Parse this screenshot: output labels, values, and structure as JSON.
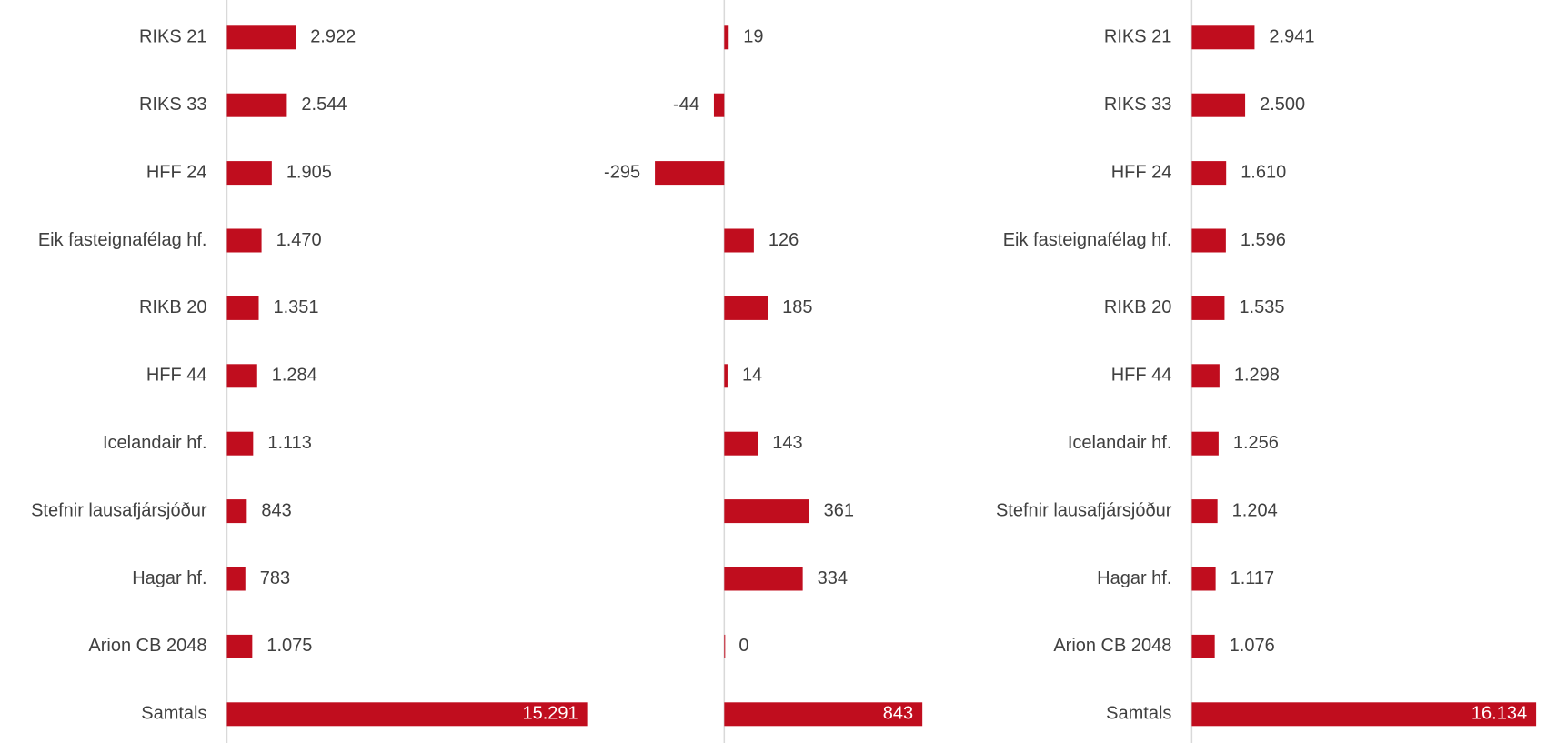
{
  "chart_data": [
    {
      "type": "bar",
      "orientation": "horizontal",
      "color": "#c00d1e",
      "categories": [
        "RIKS 21",
        "RIKS 33",
        "HFF 24",
        "Eik fasteignafélag hf.",
        "RIKB 20",
        "HFF 44",
        "Icelandair hf.",
        "Stefnir lausafjársjóður",
        "Hagar hf.",
        "Arion CB 2048",
        "Samtals"
      ],
      "values": [
        2922,
        2544,
        1905,
        1470,
        1351,
        1284,
        1113,
        843,
        783,
        1075,
        15291
      ],
      "value_labels": [
        "2.922",
        "2.544",
        "1.905",
        "1.470",
        "1.351",
        "1.284",
        "1.113",
        "843",
        "783",
        "1.075",
        "15.291"
      ],
      "xlim": [
        0,
        16000
      ]
    },
    {
      "type": "bar",
      "orientation": "horizontal",
      "color": "#c00d1e",
      "values": [
        19,
        -44,
        -295,
        126,
        185,
        14,
        143,
        361,
        334,
        0,
        843
      ],
      "xlim": [
        -300,
        900
      ]
    },
    {
      "type": "bar",
      "orientation": "horizontal",
      "color": "#c00d1e",
      "categories": [
        "RIKS 21",
        "RIKS 33",
        "HFF 24",
        "Eik fasteignafélag hf.",
        "RIKB 20",
        "HFF 44",
        "Icelandair hf.",
        "Stefnir lausafjársjóður",
        "Hagar hf.",
        "Arion CB 2048",
        "Samtals"
      ],
      "values": [
        2941,
        2500,
        1610,
        1596,
        1535,
        1298,
        1256,
        1204,
        1117,
        1076,
        16134
      ],
      "value_labels": [
        "2.941",
        "2.500",
        "1.610",
        "1.596",
        "1.535",
        "1.298",
        "1.256",
        "1.204",
        "1.117",
        "1.076",
        "16.134"
      ],
      "xlim": [
        0,
        16500
      ]
    }
  ]
}
